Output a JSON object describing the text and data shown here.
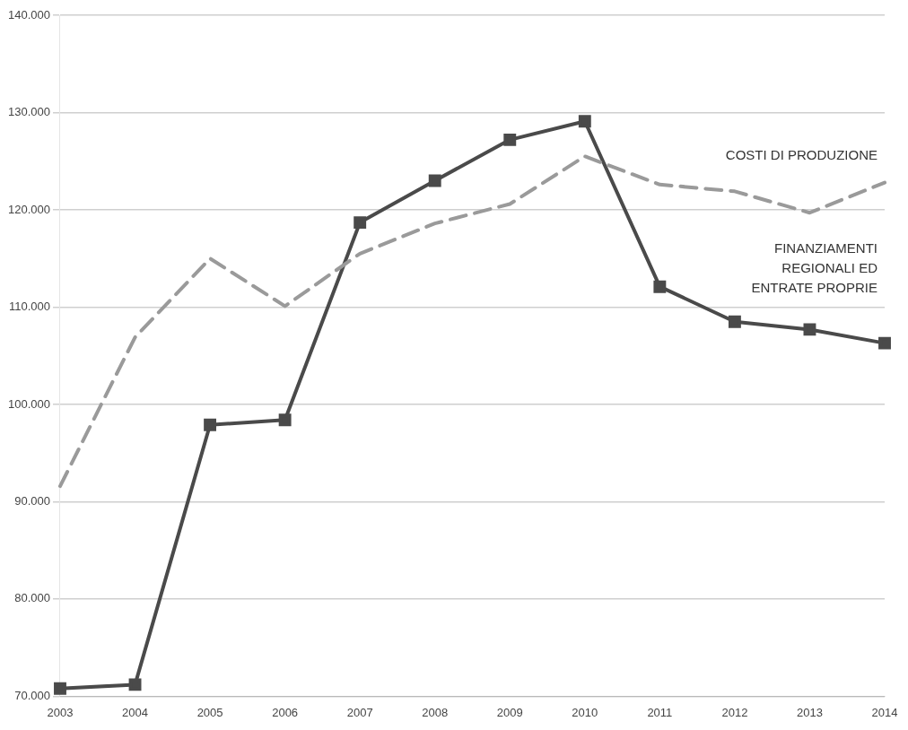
{
  "chart_data": {
    "type": "line",
    "categories": [
      "2003",
      "2004",
      "2005",
      "2006",
      "2007",
      "2008",
      "2009",
      "2010",
      "2011",
      "2012",
      "2013",
      "2014"
    ],
    "series": [
      {
        "name": "COSTI DI PRODUZIONE",
        "color": "#9a9a9a",
        "line_style": "dashed",
        "marker": "none",
        "values": [
          91600,
          106900,
          115000,
          110100,
          115500,
          118600,
          120600,
          125500,
          122600,
          121900,
          119700,
          122800
        ]
      },
      {
        "name": "FINANZIAMENTI REGIONALI ED ENTRATE PROPRIE",
        "color": "#4a4a4a",
        "line_style": "solid",
        "marker": "square",
        "values": [
          70800,
          71200,
          97900,
          98400,
          118700,
          123000,
          127200,
          129100,
          112100,
          108500,
          107700,
          106300
        ]
      }
    ],
    "ylim": [
      70000,
      140000
    ],
    "yticks": [
      {
        "value": 70000,
        "label": "70.000"
      },
      {
        "value": 80000,
        "label": "80.000"
      },
      {
        "value": 90000,
        "label": "90.000"
      },
      {
        "value": 100000,
        "label": "100.000"
      },
      {
        "value": 110000,
        "label": "110.000"
      },
      {
        "value": 120000,
        "label": "120.000"
      },
      {
        "value": 130000,
        "label": "130.000"
      },
      {
        "value": 140000,
        "label": "140.000"
      }
    ],
    "grid": "y",
    "legend": false
  }
}
